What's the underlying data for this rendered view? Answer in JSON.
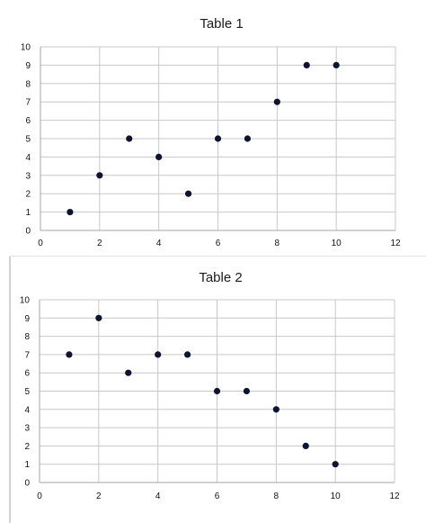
{
  "chart_data": [
    {
      "type": "scatter",
      "title": "Table 1",
      "xlabel": "",
      "ylabel": "",
      "xlim": [
        0,
        12
      ],
      "ylim": [
        0,
        10
      ],
      "x_ticks": [
        "0",
        "2",
        "4",
        "6",
        "8",
        "10",
        "12"
      ],
      "y_ticks": [
        "0",
        "1",
        "2",
        "3",
        "4",
        "5",
        "6",
        "7",
        "8",
        "9",
        "10"
      ],
      "grid": true,
      "legend": "none",
      "marker_color": "#0d1430",
      "points": [
        {
          "x": 1,
          "y": 1
        },
        {
          "x": 2,
          "y": 3
        },
        {
          "x": 3,
          "y": 5
        },
        {
          "x": 4,
          "y": 4
        },
        {
          "x": 5,
          "y": 2
        },
        {
          "x": 6,
          "y": 5
        },
        {
          "x": 7,
          "y": 5
        },
        {
          "x": 8,
          "y": 7
        },
        {
          "x": 9,
          "y": 9
        },
        {
          "x": 10,
          "y": 9
        }
      ]
    },
    {
      "type": "scatter",
      "title": "Table 2",
      "xlabel": "",
      "ylabel": "",
      "xlim": [
        0,
        12
      ],
      "ylim": [
        0,
        10
      ],
      "x_ticks": [
        "0",
        "2",
        "4",
        "6",
        "8",
        "10",
        "12"
      ],
      "y_ticks": [
        "0",
        "1",
        "2",
        "3",
        "4",
        "5",
        "6",
        "7",
        "8",
        "9",
        "10"
      ],
      "grid": true,
      "legend": "none",
      "marker_color": "#0d1430",
      "points": [
        {
          "x": 1,
          "y": 7
        },
        {
          "x": 2,
          "y": 9
        },
        {
          "x": 3,
          "y": 6
        },
        {
          "x": 4,
          "y": 7
        },
        {
          "x": 5,
          "y": 7
        },
        {
          "x": 6,
          "y": 5
        },
        {
          "x": 7,
          "y": 5
        },
        {
          "x": 8,
          "y": 4
        },
        {
          "x": 9,
          "y": 2
        },
        {
          "x": 10,
          "y": 1
        }
      ]
    }
  ]
}
